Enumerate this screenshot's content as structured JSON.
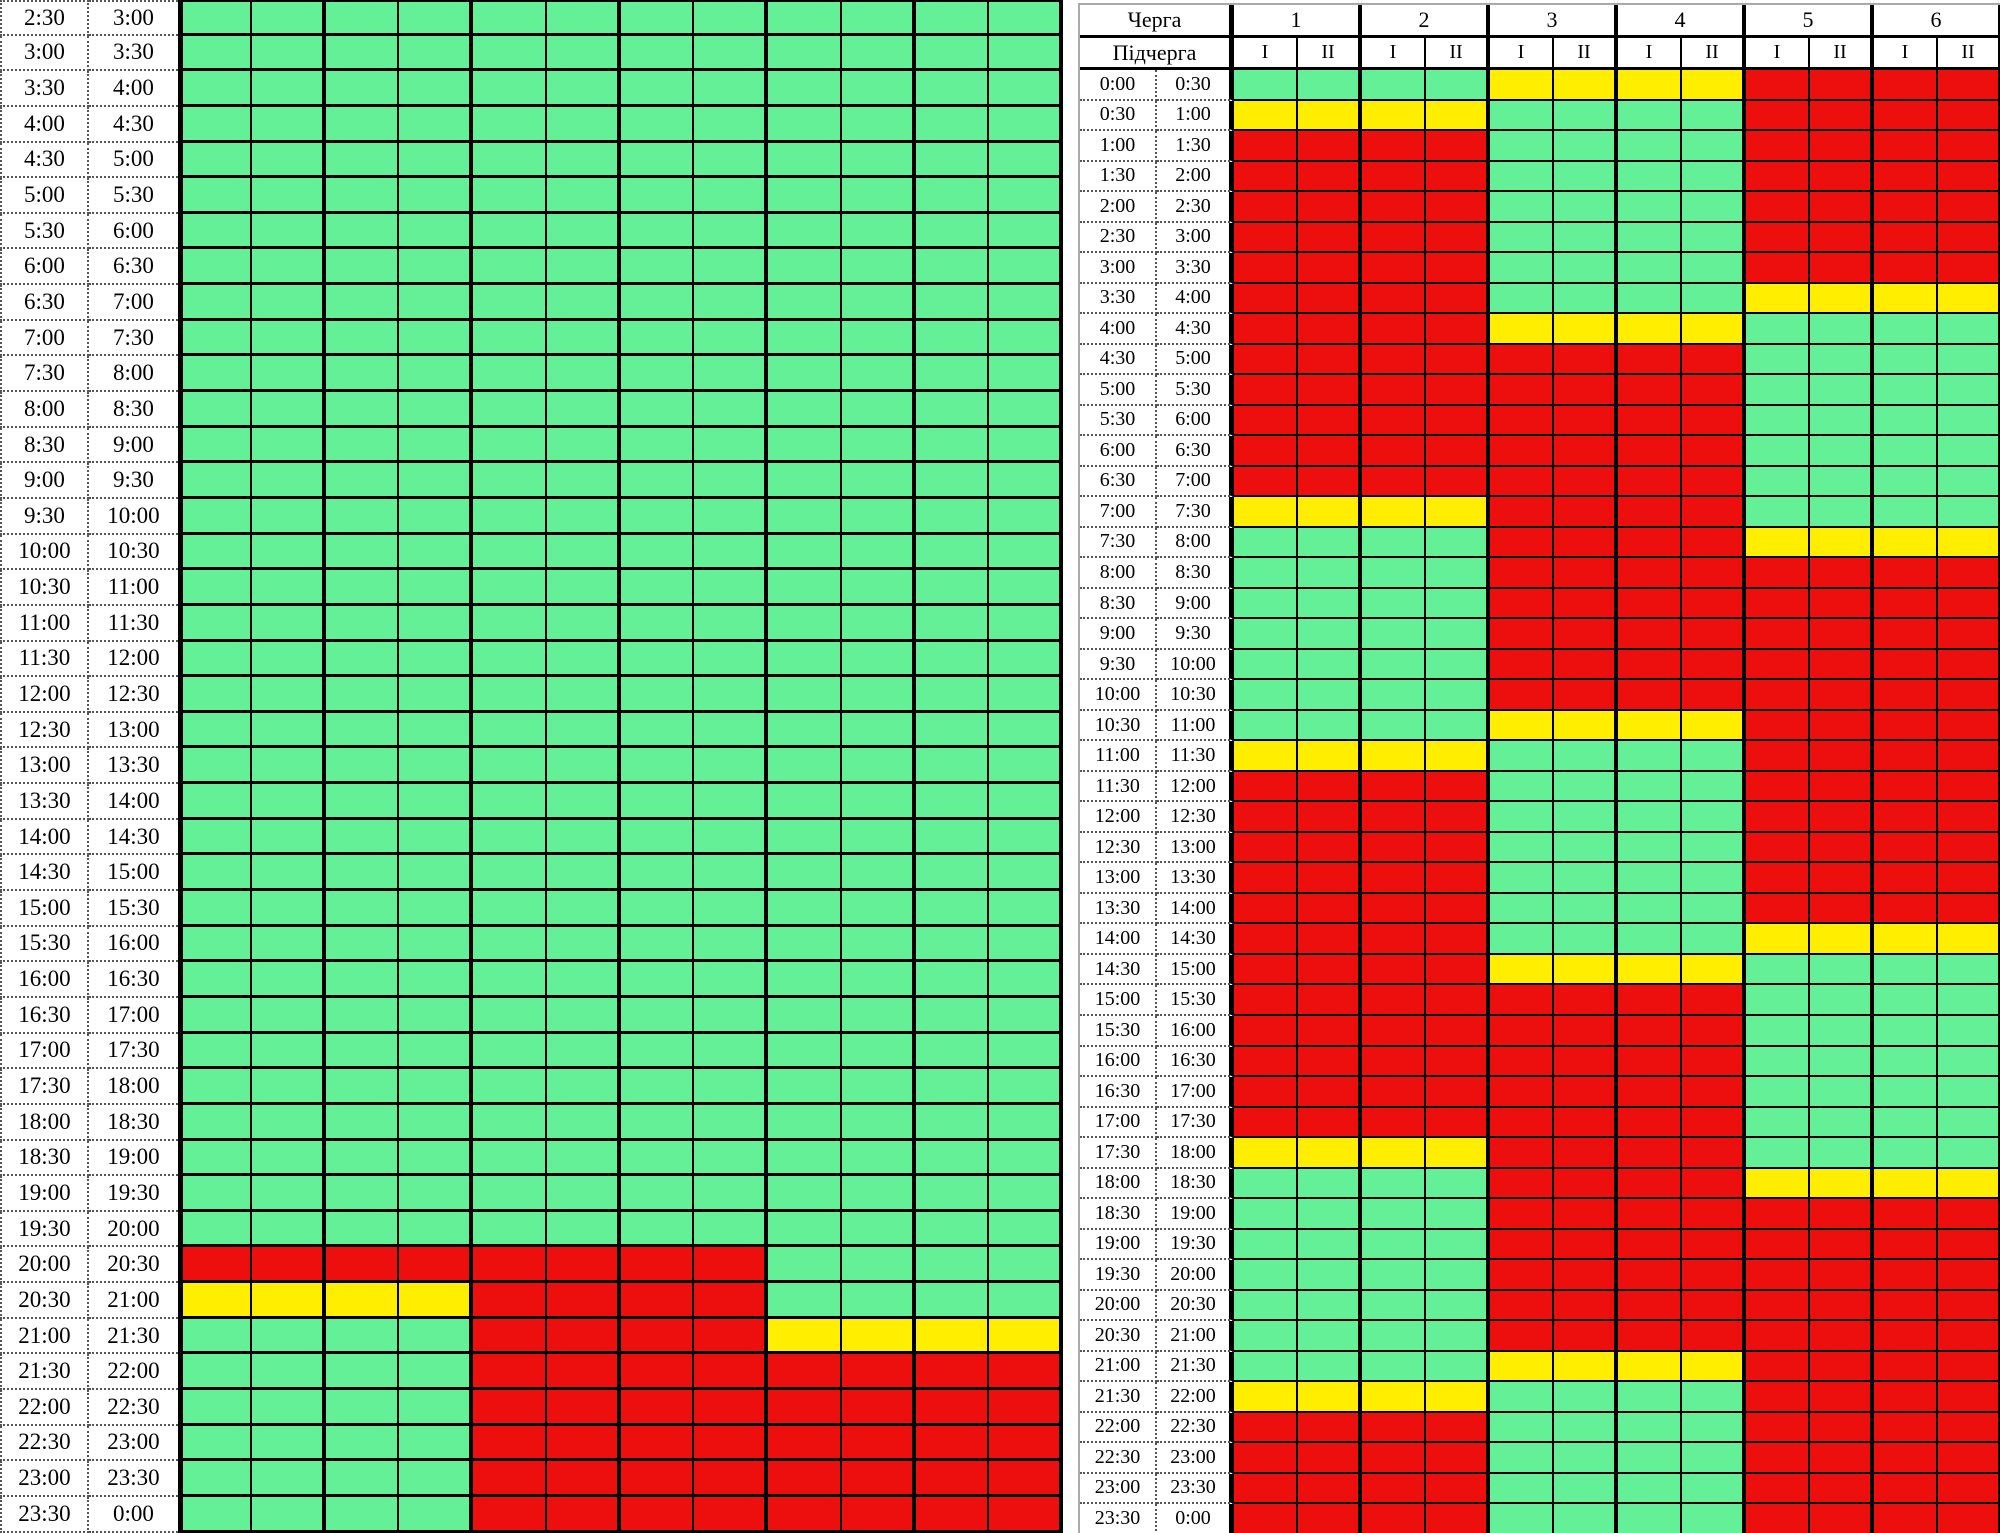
{
  "colors": {
    "green": "#64f096",
    "yellow": "#ffee00",
    "red": "#ed0e0e",
    "grid": "#000000",
    "label_background": "#ffffff",
    "text": "#000000"
  },
  "chart_data": [
    {
      "type": "heatmap",
      "name": "left-day-schedule",
      "title": "",
      "columns": null,
      "subcolumns_per_group": 2,
      "column_groups": 6,
      "group_span_columns": 4,
      "status_legend": {
        "G": "green",
        "Y": "yellow",
        "R": "red"
      },
      "rows": [
        {
          "start": "2:30",
          "end": "3:00",
          "groups": [
            "G",
            "G",
            "G"
          ]
        },
        {
          "start": "3:00",
          "end": "3:30",
          "groups": [
            "G",
            "G",
            "G"
          ]
        },
        {
          "start": "3:30",
          "end": "4:00",
          "groups": [
            "G",
            "G",
            "G"
          ]
        },
        {
          "start": "4:00",
          "end": "4:30",
          "groups": [
            "G",
            "G",
            "G"
          ]
        },
        {
          "start": "4:30",
          "end": "5:00",
          "groups": [
            "G",
            "G",
            "G"
          ]
        },
        {
          "start": "5:00",
          "end": "5:30",
          "groups": [
            "G",
            "G",
            "G"
          ]
        },
        {
          "start": "5:30",
          "end": "6:00",
          "groups": [
            "G",
            "G",
            "G"
          ]
        },
        {
          "start": "6:00",
          "end": "6:30",
          "groups": [
            "G",
            "G",
            "G"
          ]
        },
        {
          "start": "6:30",
          "end": "7:00",
          "groups": [
            "G",
            "G",
            "G"
          ]
        },
        {
          "start": "7:00",
          "end": "7:30",
          "groups": [
            "G",
            "G",
            "G"
          ]
        },
        {
          "start": "7:30",
          "end": "8:00",
          "groups": [
            "G",
            "G",
            "G"
          ]
        },
        {
          "start": "8:00",
          "end": "8:30",
          "groups": [
            "G",
            "G",
            "G"
          ]
        },
        {
          "start": "8:30",
          "end": "9:00",
          "groups": [
            "G",
            "G",
            "G"
          ]
        },
        {
          "start": "9:00",
          "end": "9:30",
          "groups": [
            "G",
            "G",
            "G"
          ]
        },
        {
          "start": "9:30",
          "end": "10:00",
          "groups": [
            "G",
            "G",
            "G"
          ]
        },
        {
          "start": "10:00",
          "end": "10:30",
          "groups": [
            "G",
            "G",
            "G"
          ]
        },
        {
          "start": "10:30",
          "end": "11:00",
          "groups": [
            "G",
            "G",
            "G"
          ]
        },
        {
          "start": "11:00",
          "end": "11:30",
          "groups": [
            "G",
            "G",
            "G"
          ]
        },
        {
          "start": "11:30",
          "end": "12:00",
          "groups": [
            "G",
            "G",
            "G"
          ]
        },
        {
          "start": "12:00",
          "end": "12:30",
          "groups": [
            "G",
            "G",
            "G"
          ]
        },
        {
          "start": "12:30",
          "end": "13:00",
          "groups": [
            "G",
            "G",
            "G"
          ]
        },
        {
          "start": "13:00",
          "end": "13:30",
          "groups": [
            "G",
            "G",
            "G"
          ]
        },
        {
          "start": "13:30",
          "end": "14:00",
          "groups": [
            "G",
            "G",
            "G"
          ]
        },
        {
          "start": "14:00",
          "end": "14:30",
          "groups": [
            "G",
            "G",
            "G"
          ]
        },
        {
          "start": "14:30",
          "end": "15:00",
          "groups": [
            "G",
            "G",
            "G"
          ]
        },
        {
          "start": "15:00",
          "end": "15:30",
          "groups": [
            "G",
            "G",
            "G"
          ]
        },
        {
          "start": "15:30",
          "end": "16:00",
          "groups": [
            "G",
            "G",
            "G"
          ]
        },
        {
          "start": "16:00",
          "end": "16:30",
          "groups": [
            "G",
            "G",
            "G"
          ]
        },
        {
          "start": "16:30",
          "end": "17:00",
          "groups": [
            "G",
            "G",
            "G"
          ]
        },
        {
          "start": "17:00",
          "end": "17:30",
          "groups": [
            "G",
            "G",
            "G"
          ]
        },
        {
          "start": "17:30",
          "end": "18:00",
          "groups": [
            "G",
            "G",
            "G"
          ]
        },
        {
          "start": "18:00",
          "end": "18:30",
          "groups": [
            "G",
            "G",
            "G"
          ]
        },
        {
          "start": "18:30",
          "end": "19:00",
          "groups": [
            "G",
            "G",
            "G"
          ]
        },
        {
          "start": "19:00",
          "end": "19:30",
          "groups": [
            "G",
            "G",
            "G"
          ]
        },
        {
          "start": "19:30",
          "end": "20:00",
          "groups": [
            "G",
            "G",
            "G"
          ]
        },
        {
          "start": "20:00",
          "end": "20:30",
          "groups": [
            "R",
            "R",
            "G"
          ]
        },
        {
          "start": "20:30",
          "end": "21:00",
          "groups": [
            "Y",
            "R",
            "G"
          ]
        },
        {
          "start": "21:00",
          "end": "21:30",
          "groups": [
            "G",
            "R",
            "Y"
          ]
        },
        {
          "start": "21:30",
          "end": "22:00",
          "groups": [
            "G",
            "R",
            "R"
          ]
        },
        {
          "start": "22:00",
          "end": "22:30",
          "groups": [
            "G",
            "R",
            "R"
          ]
        },
        {
          "start": "22:30",
          "end": "23:00",
          "groups": [
            "G",
            "R",
            "R"
          ]
        },
        {
          "start": "23:00",
          "end": "23:30",
          "groups": [
            "G",
            "R",
            "R"
          ]
        },
        {
          "start": "23:30",
          "end": "0:00",
          "groups": [
            "G",
            "R",
            "R"
          ]
        }
      ]
    },
    {
      "type": "heatmap",
      "name": "right-day-schedule",
      "title": "",
      "columns": {
        "queue_label": "Черга",
        "queues": [
          "1",
          "2",
          "3",
          "4",
          "5",
          "6"
        ],
        "subqueue_label": "Підчерга",
        "subqueues": [
          "I",
          "II"
        ]
      },
      "subcolumns_per_group": 2,
      "column_groups": 6,
      "group_span_columns": 4,
      "status_legend": {
        "G": "green",
        "Y": "yellow",
        "R": "red"
      },
      "rows": [
        {
          "start": "0:00",
          "end": "0:30",
          "groups": [
            "G",
            "Y",
            "R"
          ]
        },
        {
          "start": "0:30",
          "end": "1:00",
          "groups": [
            "Y",
            "G",
            "R"
          ]
        },
        {
          "start": "1:00",
          "end": "1:30",
          "groups": [
            "R",
            "G",
            "R"
          ]
        },
        {
          "start": "1:30",
          "end": "2:00",
          "groups": [
            "R",
            "G",
            "R"
          ]
        },
        {
          "start": "2:00",
          "end": "2:30",
          "groups": [
            "R",
            "G",
            "R"
          ]
        },
        {
          "start": "2:30",
          "end": "3:00",
          "groups": [
            "R",
            "G",
            "R"
          ]
        },
        {
          "start": "3:00",
          "end": "3:30",
          "groups": [
            "R",
            "G",
            "R"
          ]
        },
        {
          "start": "3:30",
          "end": "4:00",
          "groups": [
            "R",
            "G",
            "Y"
          ]
        },
        {
          "start": "4:00",
          "end": "4:30",
          "groups": [
            "R",
            "Y",
            "G"
          ]
        },
        {
          "start": "4:30",
          "end": "5:00",
          "groups": [
            "R",
            "R",
            "G"
          ]
        },
        {
          "start": "5:00",
          "end": "5:30",
          "groups": [
            "R",
            "R",
            "G"
          ]
        },
        {
          "start": "5:30",
          "end": "6:00",
          "groups": [
            "R",
            "R",
            "G"
          ]
        },
        {
          "start": "6:00",
          "end": "6:30",
          "groups": [
            "R",
            "R",
            "G"
          ]
        },
        {
          "start": "6:30",
          "end": "7:00",
          "groups": [
            "R",
            "R",
            "G"
          ]
        },
        {
          "start": "7:00",
          "end": "7:30",
          "groups": [
            "Y",
            "R",
            "G"
          ]
        },
        {
          "start": "7:30",
          "end": "8:00",
          "groups": [
            "G",
            "R",
            "Y"
          ]
        },
        {
          "start": "8:00",
          "end": "8:30",
          "groups": [
            "G",
            "R",
            "R"
          ]
        },
        {
          "start": "8:30",
          "end": "9:00",
          "groups": [
            "G",
            "R",
            "R"
          ]
        },
        {
          "start": "9:00",
          "end": "9:30",
          "groups": [
            "G",
            "R",
            "R"
          ]
        },
        {
          "start": "9:30",
          "end": "10:00",
          "groups": [
            "G",
            "R",
            "R"
          ]
        },
        {
          "start": "10:00",
          "end": "10:30",
          "groups": [
            "G",
            "R",
            "R"
          ]
        },
        {
          "start": "10:30",
          "end": "11:00",
          "groups": [
            "G",
            "Y",
            "R"
          ]
        },
        {
          "start": "11:00",
          "end": "11:30",
          "groups": [
            "Y",
            "G",
            "R"
          ]
        },
        {
          "start": "11:30",
          "end": "12:00",
          "groups": [
            "R",
            "G",
            "R"
          ]
        },
        {
          "start": "12:00",
          "end": "12:30",
          "groups": [
            "R",
            "G",
            "R"
          ]
        },
        {
          "start": "12:30",
          "end": "13:00",
          "groups": [
            "R",
            "G",
            "R"
          ]
        },
        {
          "start": "13:00",
          "end": "13:30",
          "groups": [
            "R",
            "G",
            "R"
          ]
        },
        {
          "start": "13:30",
          "end": "14:00",
          "groups": [
            "R",
            "G",
            "R"
          ]
        },
        {
          "start": "14:00",
          "end": "14:30",
          "groups": [
            "R",
            "G",
            "Y"
          ]
        },
        {
          "start": "14:30",
          "end": "15:00",
          "groups": [
            "R",
            "Y",
            "G"
          ]
        },
        {
          "start": "15:00",
          "end": "15:30",
          "groups": [
            "R",
            "R",
            "G"
          ]
        },
        {
          "start": "15:30",
          "end": "16:00",
          "groups": [
            "R",
            "R",
            "G"
          ]
        },
        {
          "start": "16:00",
          "end": "16:30",
          "groups": [
            "R",
            "R",
            "G"
          ]
        },
        {
          "start": "16:30",
          "end": "17:00",
          "groups": [
            "R",
            "R",
            "G"
          ]
        },
        {
          "start": "17:00",
          "end": "17:30",
          "groups": [
            "R",
            "R",
            "G"
          ]
        },
        {
          "start": "17:30",
          "end": "18:00",
          "groups": [
            "Y",
            "R",
            "G"
          ]
        },
        {
          "start": "18:00",
          "end": "18:30",
          "groups": [
            "G",
            "R",
            "Y"
          ]
        },
        {
          "start": "18:30",
          "end": "19:00",
          "groups": [
            "G",
            "R",
            "R"
          ]
        },
        {
          "start": "19:00",
          "end": "19:30",
          "groups": [
            "G",
            "R",
            "R"
          ]
        },
        {
          "start": "19:30",
          "end": "20:00",
          "groups": [
            "G",
            "R",
            "R"
          ]
        },
        {
          "start": "20:00",
          "end": "20:30",
          "groups": [
            "G",
            "R",
            "R"
          ]
        },
        {
          "start": "20:30",
          "end": "21:00",
          "groups": [
            "G",
            "R",
            "R"
          ]
        },
        {
          "start": "21:00",
          "end": "21:30",
          "groups": [
            "G",
            "Y",
            "R"
          ]
        },
        {
          "start": "21:30",
          "end": "22:00",
          "groups": [
            "Y",
            "G",
            "R"
          ]
        },
        {
          "start": "22:00",
          "end": "22:30",
          "groups": [
            "R",
            "G",
            "R"
          ]
        },
        {
          "start": "22:30",
          "end": "23:00",
          "groups": [
            "R",
            "G",
            "R"
          ]
        },
        {
          "start": "23:00",
          "end": "23:30",
          "groups": [
            "R",
            "G",
            "R"
          ]
        },
        {
          "start": "23:30",
          "end": "0:00",
          "groups": [
            "R",
            "G",
            "R"
          ]
        }
      ]
    }
  ]
}
